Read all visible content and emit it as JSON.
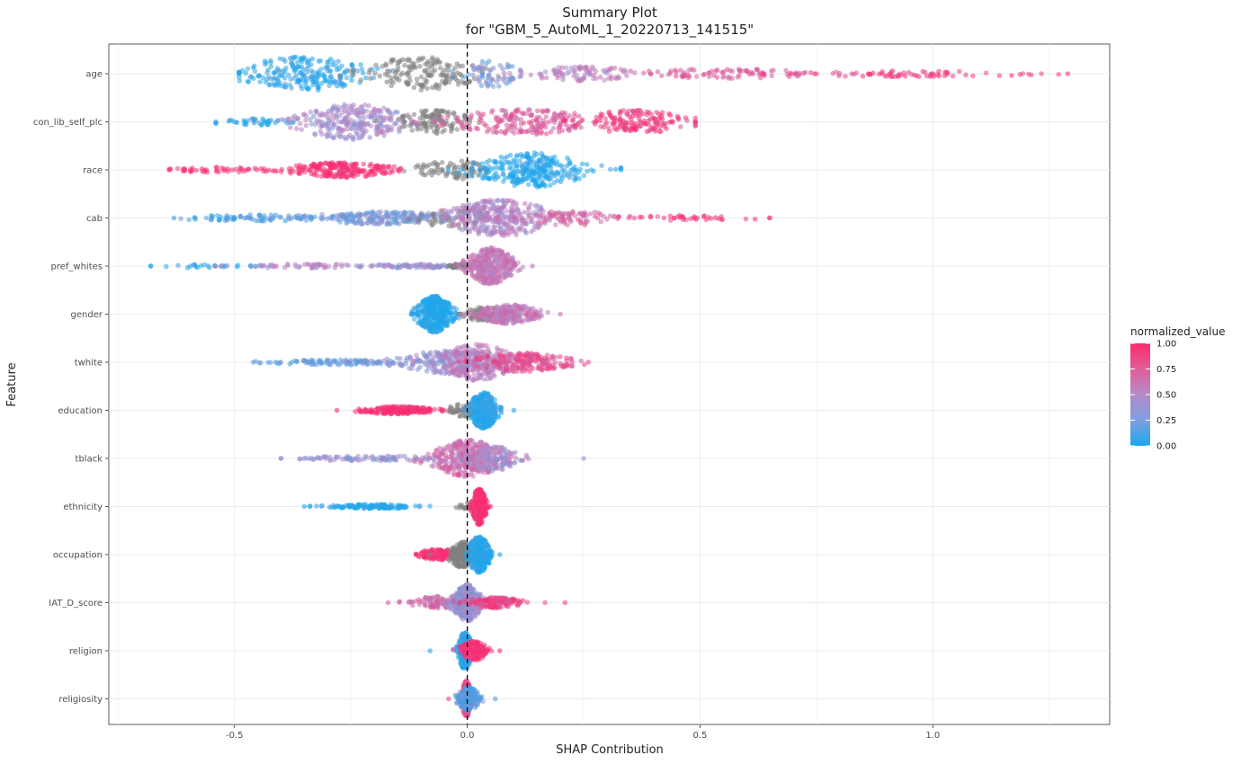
{
  "chart_data": {
    "type": "scatter",
    "subtype": "shap-beeswarm",
    "title_line1": "Summary Plot",
    "title_line2": "for \"GBM_5_AutoML_1_20220713_141515\"",
    "xlabel": "SHAP Contribution",
    "ylabel": "Feature",
    "xlim": [
      -0.77,
      1.38
    ],
    "x_ticks": [
      -0.5,
      0.0,
      0.5,
      1.0
    ],
    "x_tick_labels": [
      "-0.5",
      "0.0",
      "0.5",
      "1.0"
    ],
    "reference_line": {
      "x": 0.0,
      "style": "dashed",
      "color": "#000000"
    },
    "grid": true,
    "features": [
      "age",
      "con_lib_self_plc",
      "race",
      "cab",
      "pref_whites",
      "gender",
      "twhite",
      "education",
      "tblack",
      "ethnicity",
      "occupation",
      "IAT_D_score",
      "religion",
      "religiosity"
    ],
    "legend": {
      "title": "normalized_value",
      "position": "right",
      "ticks": [
        1.0,
        0.75,
        0.5,
        0.25,
        0.0
      ],
      "tick_labels": [
        "1.00",
        "0.75",
        "0.50",
        "0.25",
        "0.00"
      ],
      "colors": {
        "low": "#1aa7ec",
        "mid": "#b48ac8",
        "high": "#fb2a6f",
        "missing": "#7f7f7f"
      }
    },
    "distributions": [
      {
        "feature": "age",
        "x_min": -0.49,
        "x_max": 1.29,
        "clusters": [
          {
            "center": -0.35,
            "spread": 0.07,
            "count": 220,
            "value": 0.05,
            "width": 0.8
          },
          {
            "center": -0.1,
            "spread": 0.06,
            "count": 160,
            "value": -1,
            "width": 0.8
          },
          {
            "center": 0.05,
            "spread": 0.04,
            "count": 60,
            "value": 0.3,
            "width": 0.6
          },
          {
            "center": 0.25,
            "spread": 0.06,
            "count": 90,
            "value": 0.55,
            "width": 0.35
          },
          {
            "center": 0.55,
            "spread": 0.12,
            "count": 90,
            "value": 0.75,
            "width": 0.22
          },
          {
            "center": 0.95,
            "spread": 0.15,
            "count": 70,
            "value": 0.9,
            "width": 0.14
          }
        ]
      },
      {
        "feature": "con_lib_self_plc",
        "x_min": -0.54,
        "x_max": 0.49,
        "clusters": [
          {
            "center": -0.45,
            "spread": 0.05,
            "count": 40,
            "value": 0.05,
            "width": 0.15
          },
          {
            "center": -0.25,
            "spread": 0.06,
            "count": 260,
            "value": 0.45,
            "width": 0.85
          },
          {
            "center": -0.07,
            "spread": 0.04,
            "count": 110,
            "value": -1,
            "width": 0.55
          },
          {
            "center": 0.12,
            "spread": 0.08,
            "count": 200,
            "value": 0.75,
            "width": 0.6
          },
          {
            "center": 0.36,
            "spread": 0.06,
            "count": 150,
            "value": 0.92,
            "width": 0.55
          }
        ]
      },
      {
        "feature": "race",
        "x_min": -0.64,
        "x_max": 0.33,
        "clusters": [
          {
            "center": -0.52,
            "spread": 0.06,
            "count": 50,
            "value": 0.98,
            "width": 0.12
          },
          {
            "center": -0.27,
            "spread": 0.06,
            "count": 210,
            "value": 0.98,
            "width": 0.35
          },
          {
            "center": -0.03,
            "spread": 0.04,
            "count": 80,
            "value": -1,
            "width": 0.45
          },
          {
            "center": 0.14,
            "spread": 0.06,
            "count": 280,
            "value": 0.02,
            "width": 0.8
          },
          {
            "center": 0.29,
            "spread": 0.03,
            "count": 8,
            "value": 0.02,
            "width": 0.15
          }
        ]
      },
      {
        "feature": "cab",
        "x_min": -0.63,
        "x_max": 0.65,
        "clusters": [
          {
            "center": -0.45,
            "spread": 0.09,
            "count": 80,
            "value": 0.15,
            "width": 0.15
          },
          {
            "center": -0.18,
            "spread": 0.08,
            "count": 200,
            "value": 0.3,
            "width": 0.3
          },
          {
            "center": -0.03,
            "spread": 0.04,
            "count": 60,
            "value": -1,
            "width": 0.5
          },
          {
            "center": 0.07,
            "spread": 0.06,
            "count": 330,
            "value": 0.5,
            "width": 0.85
          },
          {
            "center": 0.22,
            "spread": 0.05,
            "count": 70,
            "value": 0.72,
            "width": 0.35
          },
          {
            "center": 0.45,
            "spread": 0.09,
            "count": 40,
            "value": 0.92,
            "width": 0.12
          }
        ]
      },
      {
        "feature": "pref_whites",
        "x_min": -0.68,
        "x_max": 0.14,
        "clusters": [
          {
            "center": -0.55,
            "spread": 0.07,
            "count": 25,
            "value": 0.05,
            "width": 0.1
          },
          {
            "center": -0.35,
            "spread": 0.07,
            "count": 60,
            "value": 0.5,
            "width": 0.1
          },
          {
            "center": -0.12,
            "spread": 0.06,
            "count": 80,
            "value": 0.4,
            "width": 0.1
          },
          {
            "center": -0.01,
            "spread": 0.02,
            "count": 40,
            "value": -1,
            "width": 0.1
          },
          {
            "center": 0.05,
            "spread": 0.025,
            "count": 360,
            "value": 0.6,
            "width": 0.85
          }
        ]
      },
      {
        "feature": "gender",
        "x_min": -0.12,
        "x_max": 0.2,
        "clusters": [
          {
            "center": -0.07,
            "spread": 0.02,
            "count": 380,
            "value": 0.02,
            "width": 0.85
          },
          {
            "center": 0.04,
            "spread": 0.025,
            "count": 80,
            "value": -1,
            "width": 0.35
          },
          {
            "center": 0.09,
            "spread": 0.035,
            "count": 240,
            "value": 0.6,
            "width": 0.45
          }
        ]
      },
      {
        "feature": "twhite",
        "x_min": -0.46,
        "x_max": 0.26,
        "clusters": [
          {
            "center": -0.28,
            "spread": 0.08,
            "count": 100,
            "value": 0.25,
            "width": 0.12
          },
          {
            "center": -0.05,
            "spread": 0.05,
            "count": 200,
            "value": 0.4,
            "width": 0.55
          },
          {
            "center": 0.02,
            "spread": 0.04,
            "count": 260,
            "value": 0.55,
            "width": 0.85
          },
          {
            "center": 0.12,
            "spread": 0.05,
            "count": 200,
            "value": 0.82,
            "width": 0.45
          }
        ]
      },
      {
        "feature": "education",
        "x_min": -0.28,
        "x_max": 0.1,
        "clusters": [
          {
            "center": -0.15,
            "spread": 0.04,
            "count": 220,
            "value": 0.98,
            "width": 0.18
          },
          {
            "center": -0.01,
            "spread": 0.02,
            "count": 60,
            "value": -1,
            "width": 0.3
          },
          {
            "center": 0.035,
            "spread": 0.015,
            "count": 320,
            "value": 0.05,
            "width": 0.85
          }
        ]
      },
      {
        "feature": "tblack",
        "x_min": -0.4,
        "x_max": 0.25,
        "clusters": [
          {
            "center": -0.2,
            "spread": 0.08,
            "count": 90,
            "value": 0.4,
            "width": 0.12
          },
          {
            "center": 0.0,
            "spread": 0.04,
            "count": 330,
            "value": 0.65,
            "width": 0.85
          },
          {
            "center": 0.05,
            "spread": 0.03,
            "count": 140,
            "value": 0.45,
            "width": 0.6
          }
        ]
      },
      {
        "feature": "ethnicity",
        "x_min": -0.35,
        "x_max": 0.05,
        "clusters": [
          {
            "center": -0.2,
            "spread": 0.05,
            "count": 130,
            "value": 0.02,
            "width": 0.1
          },
          {
            "center": -0.005,
            "spread": 0.01,
            "count": 20,
            "value": -1,
            "width": 0.2
          },
          {
            "center": 0.025,
            "spread": 0.008,
            "count": 280,
            "value": 0.98,
            "width": 0.85
          }
        ]
      },
      {
        "feature": "occupation",
        "x_min": -0.11,
        "x_max": 0.07,
        "clusters": [
          {
            "center": -0.06,
            "spread": 0.025,
            "count": 120,
            "value": 0.98,
            "width": 0.25
          },
          {
            "center": -0.01,
            "spread": 0.015,
            "count": 160,
            "value": -1,
            "width": 0.6
          },
          {
            "center": 0.025,
            "spread": 0.012,
            "count": 300,
            "value": 0.02,
            "width": 0.85
          }
        ]
      },
      {
        "feature": "IAT_D_score",
        "x_min": -0.17,
        "x_max": 0.21,
        "clusters": [
          {
            "center": -0.05,
            "spread": 0.04,
            "count": 110,
            "value": 0.7,
            "width": 0.3
          },
          {
            "center": 0.0,
            "spread": 0.015,
            "count": 330,
            "value": 0.4,
            "width": 0.85
          },
          {
            "center": 0.06,
            "spread": 0.03,
            "count": 140,
            "value": 0.88,
            "width": 0.25
          }
        ]
      },
      {
        "feature": "religion",
        "x_min": -0.08,
        "x_max": 0.07,
        "clusters": [
          {
            "center": -0.005,
            "spread": 0.008,
            "count": 250,
            "value": 0.05,
            "width": 0.85
          },
          {
            "center": 0.015,
            "spread": 0.015,
            "count": 180,
            "value": 0.98,
            "width": 0.45
          }
        ]
      },
      {
        "feature": "religiosity",
        "x_min": -0.04,
        "x_max": 0.06,
        "clusters": [
          {
            "center": -0.002,
            "spread": 0.005,
            "count": 280,
            "value": 0.85,
            "width": 0.85
          },
          {
            "center": 0.003,
            "spread": 0.012,
            "count": 160,
            "value": 0.2,
            "width": 0.55
          }
        ]
      }
    ]
  }
}
